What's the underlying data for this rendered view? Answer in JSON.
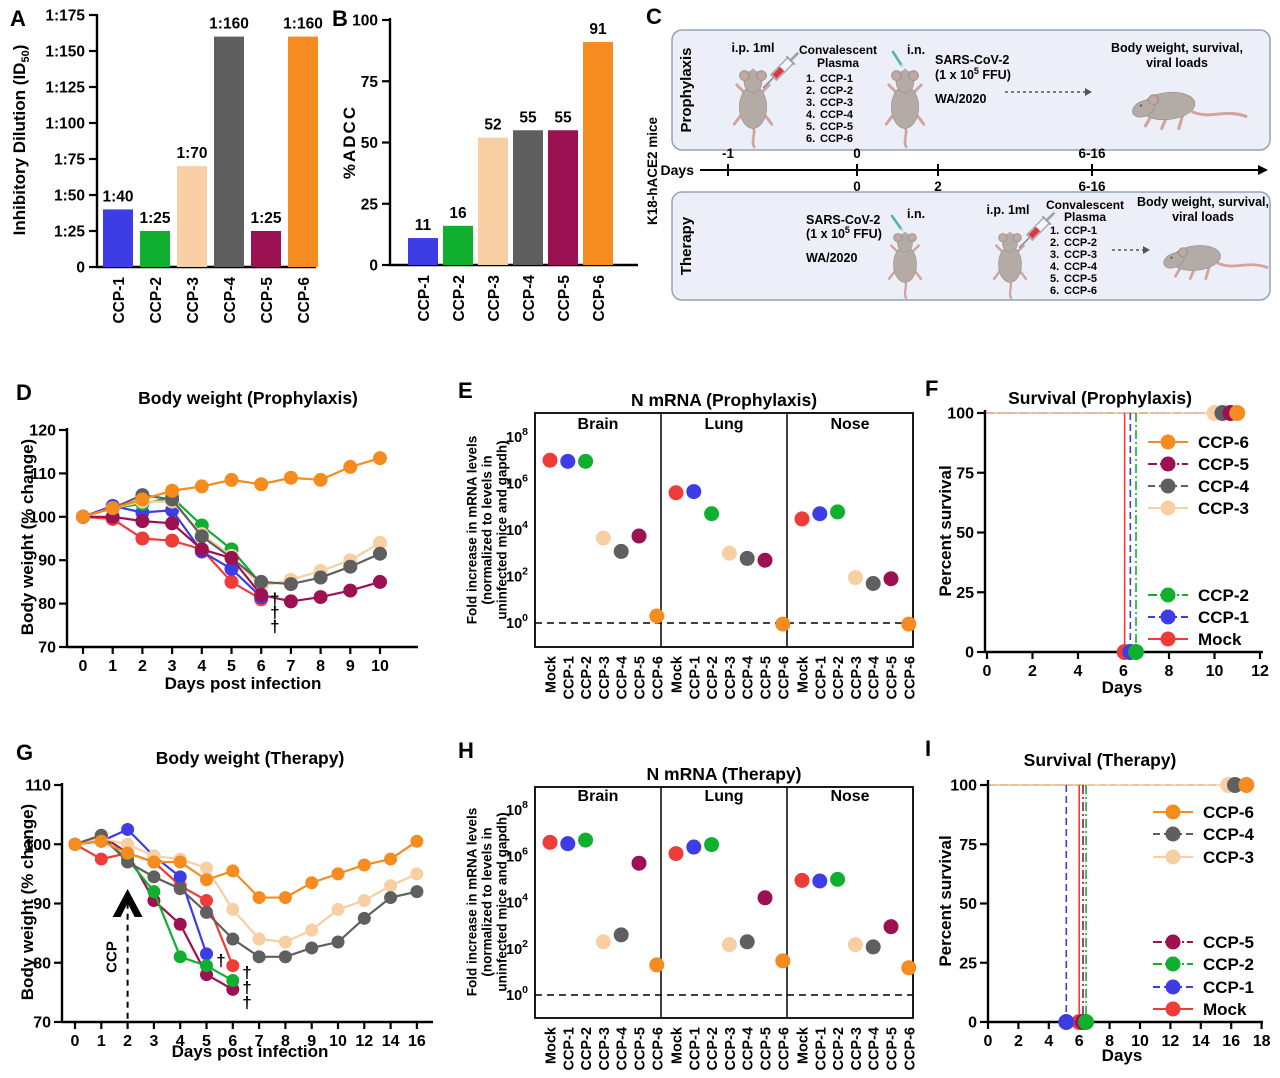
{
  "colors": {
    "ccp1": "#3E3CE5",
    "ccp2": "#10AF2F",
    "ccp3": "#F7CFA2",
    "ccp4": "#5F5F5F",
    "ccp5": "#9B1152",
    "ccp6": "#F68C1F",
    "mock": "#EE3D38",
    "dagger": "#C44A3E",
    "box_fill": "#ECEFF7",
    "box_border": "#93A2BB",
    "mouse_body": "#B5ABA6",
    "mouse_pink": "#D3A49E",
    "mouse_stroke": "#9A9089",
    "teal": "#58B2A8",
    "arrow_gray": "#555555"
  },
  "chart_data": {
    "A": {
      "panel_label": "A",
      "type": "bar",
      "ylabel_pre": "Inhibitory Dilution (ID",
      "ylabel_sub": "50",
      "ylabel_post": ")",
      "categories": [
        "CCP-1",
        "CCP-2",
        "CCP-3",
        "CCP-4",
        "CCP-5",
        "CCP-6"
      ],
      "values": [
        40,
        25,
        70,
        160,
        25,
        160
      ],
      "bar_labels": [
        "1:40",
        "1:25",
        "1:70",
        "1:160",
        "1:25",
        "1:160"
      ],
      "bar_colors": [
        "ccp1",
        "ccp2",
        "ccp3",
        "ccp4",
        "ccp5",
        "ccp6"
      ],
      "ytick_values": [
        0,
        25,
        50,
        75,
        100,
        125,
        150,
        175
      ],
      "ytick_labels": [
        "0",
        "1:25",
        "1:50",
        "1:75",
        "1:100",
        "1:125",
        "1:150",
        "1:175"
      ],
      "ylim": [
        0,
        175
      ]
    },
    "B": {
      "panel_label": "B",
      "type": "bar",
      "ylabel": "%ADCC",
      "categories": [
        "CCP-1",
        "CCP-2",
        "CCP-3",
        "CCP-4",
        "CCP-5",
        "CCP-6"
      ],
      "values": [
        11,
        16,
        52,
        55,
        55,
        91
      ],
      "bar_labels": [
        "11",
        "16",
        "52",
        "55",
        "55",
        "91"
      ],
      "bar_colors": [
        "ccp1",
        "ccp2",
        "ccp3",
        "ccp4",
        "ccp5",
        "ccp6"
      ],
      "ytick_values": [
        0,
        25,
        50,
        75,
        100
      ],
      "ytick_labels": [
        "0",
        "25",
        "50",
        "75",
        "100"
      ],
      "ylim": [
        0,
        100
      ]
    },
    "D": {
      "panel_label": "D",
      "type": "line",
      "title": "Body weight (Prophylaxis)",
      "xlabel": "Days post infection",
      "ylabel": "Body weight (% change)",
      "x": [
        0,
        1,
        2,
        3,
        4,
        5,
        6,
        7,
        8,
        9,
        10
      ],
      "ylim": [
        70,
        120
      ],
      "yticks": [
        70,
        80,
        90,
        100,
        110,
        120
      ],
      "series": [
        {
          "name": "Mock",
          "color": "mock",
          "values": [
            100,
            99.5,
            95,
            94.5,
            92.5,
            85,
            81
          ]
        },
        {
          "name": "CCP-1",
          "color": "ccp1",
          "values": [
            100,
            102.5,
            101,
            101.5,
            92,
            88,
            81.5
          ]
        },
        {
          "name": "CCP-2",
          "color": "ccp2",
          "values": [
            100,
            102,
            103,
            104.5,
            98,
            92.5,
            84.5
          ]
        },
        {
          "name": "CCP-3",
          "color": "ccp3",
          "values": [
            100,
            102,
            103.5,
            103.5,
            96,
            91,
            84,
            85.5,
            87.5,
            90,
            94
          ]
        },
        {
          "name": "CCP-4",
          "color": "ccp4",
          "values": [
            100,
            102,
            105,
            104,
            95.5,
            90.5,
            85,
            84.5,
            86,
            88.5,
            91.5
          ]
        },
        {
          "name": "CCP-5",
          "color": "ccp5",
          "values": [
            100,
            100,
            99,
            98.5,
            92.5,
            90.5,
            82,
            80.5,
            81.5,
            83,
            85
          ]
        },
        {
          "name": "CCP-6",
          "color": "ccp6",
          "values": [
            100,
            102,
            104,
            106,
            107,
            108.5,
            107.5,
            109,
            108.5,
            111.5,
            113.5
          ]
        }
      ],
      "daggers": {
        "symbol": "†",
        "points": [
          {
            "x": 6.46,
            "y": 81
          },
          {
            "x": 6.46,
            "y": 77.8
          },
          {
            "x": 6.46,
            "y": 74.6
          }
        ]
      }
    },
    "E": {
      "panel_label": "E",
      "type": "dotplot",
      "title": "N mRNA (Prophylaxis)",
      "ylabel_lines": [
        "Fold increase in mRNA levels",
        "(normalized to levels in",
        "uninfected mice and gapdh)"
      ],
      "organs": [
        "Brain",
        "Lung",
        "Nose"
      ],
      "categories": [
        "Mock",
        "CCP-1",
        "CCP-2",
        "CCP-3",
        "CCP-4",
        "CCP-5",
        "CCP-6"
      ],
      "dot_colors": [
        "mock",
        "ccp1",
        "ccp2",
        "ccp3",
        "ccp4",
        "ccp5",
        "ccp6"
      ],
      "values": {
        "Brain": [
          10000000,
          9000000,
          9000000,
          4500,
          1200,
          5500,
          2
        ],
        "Lung": [
          400000,
          450000,
          50000,
          1000,
          600,
          500,
          0.9
        ],
        "Nose": [
          30000,
          50000,
          60000,
          90,
          50,
          80,
          0.9
        ]
      },
      "ytick_exponents": [
        8,
        6,
        4,
        2,
        0
      ],
      "baseline": 1
    },
    "F": {
      "panel_label": "F",
      "type": "survival",
      "title": "Survival (Prophylaxis)",
      "xlabel": "Days",
      "ylabel": "Percent survival",
      "xlim": [
        0,
        12
      ],
      "xticks": [
        0,
        2,
        4,
        6,
        8,
        10,
        12
      ],
      "yticks": [
        0,
        25,
        50,
        75,
        100
      ],
      "series": [
        {
          "name": "Mock",
          "color": "mock",
          "style": "solid",
          "outcome": "died",
          "day": 6.05
        },
        {
          "name": "CCP-1",
          "color": "ccp1",
          "style": "dashed",
          "outcome": "died",
          "day": 6.3
        },
        {
          "name": "CCP-2",
          "color": "ccp2",
          "style": "dashdot",
          "outcome": "died",
          "day": 6.55
        },
        {
          "name": "CCP-3",
          "color": "ccp3",
          "style": "solid",
          "outcome": "survived",
          "day": 10.0
        },
        {
          "name": "CCP-4",
          "color": "ccp4",
          "style": "dashed",
          "outcome": "survived",
          "day": 10.35
        },
        {
          "name": "CCP-5",
          "color": "ccp5",
          "style": "dashdot",
          "outcome": "survived",
          "day": 10.7
        },
        {
          "name": "CCP-6",
          "color": "ccp6",
          "style": "solid",
          "outcome": "survived",
          "day": 11.0
        }
      ],
      "legend_top": [
        "CCP-6",
        "CCP-5",
        "CCP-4",
        "CCP-3"
      ],
      "legend_bottom": [
        "CCP-2",
        "CCP-1",
        "Mock"
      ]
    },
    "G": {
      "panel_label": "G",
      "type": "line",
      "title": "Body weight (Therapy)",
      "xlabel": "Days post infection",
      "ylabel": "Body weight (% change)",
      "x": [
        0,
        1,
        2,
        3,
        4,
        5,
        6,
        7,
        8,
        9,
        10,
        12,
        14,
        16
      ],
      "ylim": [
        70,
        110
      ],
      "yticks": [
        70,
        80,
        90,
        100,
        110
      ],
      "series": [
        {
          "name": "Mock",
          "color": "mock",
          "values": [
            100,
            97.5,
            98.5,
            97,
            93,
            90.5,
            79.5
          ]
        },
        {
          "name": "CCP-1",
          "color": "ccp1",
          "values": [
            100,
            100.5,
            102.5,
            98,
            94.5,
            81.5
          ]
        },
        {
          "name": "CCP-5",
          "color": "ccp5",
          "values": [
            100,
            101.5,
            98.5,
            90.5,
            86.5,
            78,
            75.5
          ]
        },
        {
          "name": "CCP-2",
          "color": "ccp2",
          "values": [
            100,
            101,
            97.5,
            92,
            81,
            79.5,
            77
          ]
        },
        {
          "name": "CCP-3",
          "color": "ccp3",
          "values": [
            100,
            101,
            100,
            98,
            97.5,
            96,
            89,
            84,
            83.5,
            85.5,
            89,
            90.5,
            93,
            95
          ]
        },
        {
          "name": "CCP-4",
          "color": "ccp4",
          "values": [
            100,
            101.5,
            97,
            94.5,
            92.5,
            88.5,
            84,
            81,
            81,
            82.5,
            83.5,
            87.5,
            91,
            92
          ]
        },
        {
          "name": "CCP-6",
          "color": "ccp6",
          "values": [
            100,
            100.5,
            98.5,
            97,
            97,
            94,
            95.5,
            91,
            91,
            93.5,
            95,
            96.5,
            97.5,
            100.5
          ]
        }
      ],
      "treatment_arrow": {
        "label": "CCP",
        "day": 2
      },
      "daggers": {
        "symbol": "†",
        "points": [
          {
            "x": 5.55,
            "y": 80.3
          },
          {
            "x": 6.54,
            "y": 78.3
          },
          {
            "x": 6.54,
            "y": 75.7
          },
          {
            "x": 6.54,
            "y": 73.2
          }
        ]
      }
    },
    "H": {
      "panel_label": "H",
      "type": "dotplot",
      "title": "N mRNA (Therapy)",
      "ylabel_lines": [
        "Fold increase in mRNA levels",
        "(normalized to levels in",
        "uninfected mice and gapdh)"
      ],
      "organs": [
        "Brain",
        "Lung",
        "Nose"
      ],
      "categories": [
        "Mock",
        "CCP-1",
        "CCP-2",
        "CCP-3",
        "CCP-4",
        "CCP-5",
        "CCP-6"
      ],
      "dot_colors": [
        "mock",
        "ccp1",
        "ccp2",
        "ccp3",
        "ccp4",
        "ccp5",
        "ccp6"
      ],
      "values": {
        "Brain": [
          4000000,
          3500000,
          5000000,
          200,
          400,
          500000,
          20
        ],
        "Lung": [
          1300000,
          2500000,
          3200000,
          150,
          200,
          16000,
          30
        ],
        "Nose": [
          90000,
          85000,
          100000,
          150,
          120,
          900,
          15
        ]
      },
      "ytick_exponents": [
        8,
        6,
        4,
        2,
        0
      ],
      "baseline": 1
    },
    "I": {
      "panel_label": "I",
      "type": "survival",
      "title": "Survival (Therapy)",
      "xlabel": "Days",
      "ylabel": "Percent survival",
      "xlim": [
        0,
        18
      ],
      "xticks": [
        0,
        2,
        4,
        6,
        8,
        10,
        12,
        14,
        16,
        18
      ],
      "yticks": [
        0,
        25,
        50,
        75,
        100
      ],
      "series": [
        {
          "name": "Mock",
          "color": "mock",
          "style": "solid",
          "outcome": "died",
          "day": 6.0
        },
        {
          "name": "CCP-1",
          "color": "ccp1",
          "style": "dashed",
          "outcome": "died",
          "day": 5.15
        },
        {
          "name": "CCP-5",
          "color": "ccp5",
          "style": "dashdot",
          "outcome": "died",
          "day": 6.25
        },
        {
          "name": "CCP-2",
          "color": "ccp2",
          "style": "dashdot",
          "outcome": "died",
          "day": 6.45
        },
        {
          "name": "CCP-3",
          "color": "ccp3",
          "style": "solid",
          "outcome": "survived",
          "day": 15.8
        },
        {
          "name": "CCP-4",
          "color": "ccp4",
          "style": "dashed",
          "outcome": "survived",
          "day": 16.25
        },
        {
          "name": "CCP-6",
          "color": "ccp6",
          "style": "solid",
          "outcome": "survived",
          "day": 17.0
        }
      ],
      "legend_top": [
        "CCP-6",
        "CCP-4",
        "CCP-3"
      ],
      "legend_bottom": [
        "CCP-5",
        "CCP-2",
        "CCP-1",
        "Mock"
      ]
    }
  },
  "diagram_c": {
    "panel_label": "C",
    "mice_label": "K18-hACE2 mice",
    "days_label": "Days",
    "timeline": {
      "ticks_above": [
        "-1",
        "0",
        "6-16"
      ],
      "ticks_below": [
        "0",
        "2",
        "6-16"
      ]
    },
    "prophylaxis": {
      "label": "Prophylaxis",
      "ip_label": "i.p. 1ml",
      "in_label": "i.n.",
      "plasma_title1": "Convalescent",
      "plasma_title2": "Plasma",
      "plasma_items": [
        {
          "num": "1.",
          "name": "CCP-1",
          "color": "ccp1"
        },
        {
          "num": "2.",
          "name": "CCP-2",
          "color": "ccp2"
        },
        {
          "num": "3.",
          "name": "CCP-3",
          "color": "ccp3"
        },
        {
          "num": "4.",
          "name": "CCP-4",
          "color": "ccp4"
        },
        {
          "num": "5.",
          "name": "CCP-5",
          "color": "ccp5"
        },
        {
          "num": "6.",
          "name": "CCP-6",
          "color": "ccp6"
        }
      ],
      "virus_name": "SARS-CoV-2",
      "ffu_pre": "(1 x 10",
      "ffu_exp": "5",
      "ffu_post": " FFU)",
      "strain": "WA/2020",
      "outcome1": "Body weight, survival,",
      "outcome2": "viral loads"
    },
    "therapy": {
      "label": "Therapy",
      "ip_label": "i.p. 1ml",
      "in_label": "i.n.",
      "plasma_title1": "Convalescent",
      "plasma_title2": "Plasma",
      "plasma_items": [
        {
          "num": "1.",
          "name": "CCP-1",
          "color": "ccp1"
        },
        {
          "num": "2.",
          "name": "CCP-2",
          "color": "ccp2"
        },
        {
          "num": "3.",
          "name": "CCP-3",
          "color": "ccp3"
        },
        {
          "num": "4.",
          "name": "CCP-4",
          "color": "ccp4"
        },
        {
          "num": "5.",
          "name": "CCP-5",
          "color": "ccp5"
        },
        {
          "num": "6.",
          "name": "CCP-6",
          "color": "ccp6"
        }
      ],
      "virus_name": "SARS-CoV-2",
      "ffu_pre": "(1 x 10",
      "ffu_exp": "5",
      "ffu_post": " FFU)",
      "strain": "WA/2020",
      "outcome1": "Body weight, survival,",
      "outcome2": "viral loads"
    }
  }
}
